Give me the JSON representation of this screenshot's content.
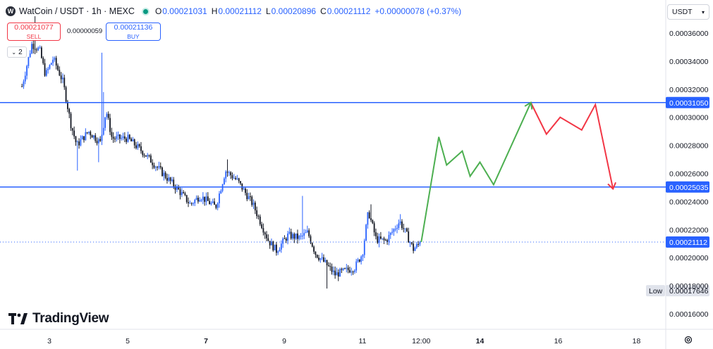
{
  "header": {
    "symbol_title": "WatCoin / USDT · 1h · MEXC",
    "logo_letter": "W",
    "ohlc": [
      {
        "label": "O",
        "value": "0.00021031"
      },
      {
        "label": "H",
        "value": "0.00021112"
      },
      {
        "label": "L",
        "value": "0.00020896"
      },
      {
        "label": "C",
        "value": "0.00021112"
      }
    ],
    "change": "+0.00000078 (+0.37%)"
  },
  "trade": {
    "sell_price": "0.00021077",
    "sell_label": "SELL",
    "spread": "0.00000059",
    "buy_price": "0.00021136",
    "buy_label": "BUY"
  },
  "indicators_toggle": "2",
  "currency_selector": "USDT",
  "branding": "TradingView",
  "colors": {
    "up": "#2962ff",
    "down": "#131722",
    "level": "#2962ff",
    "bull_path": "#4caf50",
    "bear_path": "#f23645"
  },
  "chart_data": {
    "type": "candlestick",
    "interval": "1h",
    "ylim": [
      0.00015,
      0.000378
    ],
    "x_ticks": [
      {
        "label": "3",
        "day": 3
      },
      {
        "label": "5",
        "day": 5
      },
      {
        "label": "7",
        "day": 7
      },
      {
        "label": "9",
        "day": 9
      },
      {
        "label": "11",
        "day": 11
      },
      {
        "label": "12:00",
        "day": 12.5
      },
      {
        "label": "14",
        "day": 14
      },
      {
        "label": "16",
        "day": 16
      },
      {
        "label": "18",
        "day": 18
      }
    ],
    "y_ticks": [
      "0.00036000",
      "0.00034000",
      "0.00032000",
      "0.00030000",
      "0.00028000",
      "0.00026000",
      "0.00024000",
      "0.00022000",
      "0.00020000",
      "0.00018000",
      "0.00016000"
    ],
    "levels": [
      {
        "value": 0.0003105,
        "label": "0.00031050"
      },
      {
        "value": 0.00025035,
        "label": "0.00025035"
      }
    ],
    "current_price": {
      "value": 0.00021112,
      "label": "0.00021112"
    },
    "low": {
      "value": 0.00017646,
      "title": "Low",
      "label": "0.00017646"
    },
    "price_anchors": [
      {
        "day": 2.3,
        "price": 0.000322
      },
      {
        "day": 2.55,
        "price": 0.000352
      },
      {
        "day": 2.75,
        "price": 0.000348
      },
      {
        "day": 2.9,
        "price": 0.00033
      },
      {
        "day": 3.1,
        "price": 0.000342
      },
      {
        "day": 3.35,
        "price": 0.000325
      },
      {
        "day": 3.55,
        "price": 0.000295
      },
      {
        "day": 3.7,
        "price": 0.00028
      },
      {
        "day": 4.0,
        "price": 0.00029
      },
      {
        "day": 4.3,
        "price": 0.000282
      },
      {
        "day": 4.45,
        "price": 0.000305
      },
      {
        "day": 4.6,
        "price": 0.000285
      },
      {
        "day": 5.0,
        "price": 0.000285
      },
      {
        "day": 5.4,
        "price": 0.000275
      },
      {
        "day": 5.8,
        "price": 0.000263
      },
      {
        "day": 6.3,
        "price": 0.000248
      },
      {
        "day": 6.6,
        "price": 0.000238
      },
      {
        "day": 6.85,
        "price": 0.000244
      },
      {
        "day": 7.25,
        "price": 0.000236
      },
      {
        "day": 7.5,
        "price": 0.000262
      },
      {
        "day": 7.8,
        "price": 0.000255
      },
      {
        "day": 8.2,
        "price": 0.000238
      },
      {
        "day": 8.6,
        "price": 0.000212
      },
      {
        "day": 8.8,
        "price": 0.000205
      },
      {
        "day": 9.1,
        "price": 0.000216
      },
      {
        "day": 9.4,
        "price": 0.000214
      },
      {
        "day": 9.6,
        "price": 0.000218
      },
      {
        "day": 9.8,
        "price": 0.000203
      },
      {
        "day": 10.05,
        "price": 0.000196
      },
      {
        "day": 10.3,
        "price": 0.000188
      },
      {
        "day": 10.5,
        "price": 0.00019
      },
      {
        "day": 10.8,
        "price": 0.000193
      },
      {
        "day": 11.0,
        "price": 0.000203
      },
      {
        "day": 11.15,
        "price": 0.000233
      },
      {
        "day": 11.35,
        "price": 0.000213
      },
      {
        "day": 11.6,
        "price": 0.000212
      },
      {
        "day": 11.95,
        "price": 0.000226
      },
      {
        "day": 12.1,
        "price": 0.000218
      },
      {
        "day": 12.3,
        "price": 0.000206
      },
      {
        "day": 12.5,
        "price": 0.00021112
      }
    ],
    "spikes": [
      {
        "day": 2.65,
        "high": 0.000372
      },
      {
        "day": 3.7,
        "low": 0.000262
      },
      {
        "day": 4.25,
        "low": 0.000268
      },
      {
        "day": 4.35,
        "high": 0.000346
      },
      {
        "day": 4.4,
        "high": 0.000318
      },
      {
        "day": 7.55,
        "high": 0.00027
      },
      {
        "day": 9.45,
        "high": 0.000244
      },
      {
        "day": 10.1,
        "low": 0.000178
      },
      {
        "day": 11.2,
        "high": 0.000238
      },
      {
        "day": 11.95,
        "high": 0.000231
      }
    ],
    "projection_bull": [
      {
        "day": 12.5,
        "price": 0.00021112
      },
      {
        "day": 12.95,
        "price": 0.000286
      },
      {
        "day": 13.15,
        "price": 0.000266
      },
      {
        "day": 13.55,
        "price": 0.000276
      },
      {
        "day": 13.75,
        "price": 0.000258
      },
      {
        "day": 14.0,
        "price": 0.000268
      },
      {
        "day": 14.35,
        "price": 0.000252
      },
      {
        "day": 15.3,
        "price": 0.0003105
      }
    ],
    "projection_bear": [
      {
        "day": 15.3,
        "price": 0.0003105
      },
      {
        "day": 15.7,
        "price": 0.000288
      },
      {
        "day": 16.05,
        "price": 0.0003
      },
      {
        "day": 16.6,
        "price": 0.000291
      },
      {
        "day": 16.95,
        "price": 0.000309
      },
      {
        "day": 17.4,
        "price": 0.000249
      }
    ]
  }
}
